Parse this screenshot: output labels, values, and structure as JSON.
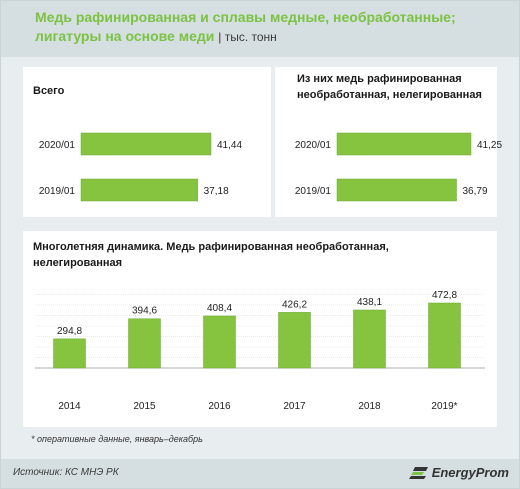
{
  "header": {
    "title": "Медь рафинированная и сплавы медные, необработанные; лигатуры на основе меди",
    "unit": "тыс. тонн"
  },
  "colors": {
    "accent": "#7cc242",
    "bar": "#86c440",
    "bar_edge": "#6aa832"
  },
  "chart_data": [
    {
      "type": "bar",
      "orientation": "horizontal",
      "title": "Всего",
      "categories": [
        "2020/01",
        "2019/01"
      ],
      "values": [
        41.44,
        37.18
      ],
      "value_labels": [
        "41,44",
        "37,18"
      ]
    },
    {
      "type": "bar",
      "orientation": "horizontal",
      "title": "Из них медь рафинированная необработанная,  нелегированная",
      "categories": [
        "2020/01",
        "2019/01"
      ],
      "values": [
        41.25,
        36.79
      ],
      "value_labels": [
        "41,25",
        "36,79"
      ]
    },
    {
      "type": "bar",
      "orientation": "vertical",
      "title": "Многолетняя динамика.   Медь рафинированная   необработанная, нелегированная",
      "categories": [
        "2014",
        "2015",
        "2016",
        "2017",
        "2018",
        "2019*"
      ],
      "values": [
        294.8,
        394.6,
        408.4,
        426.2,
        438.1,
        472.8
      ],
      "value_labels": [
        "294,8",
        "394,6",
        "408,4",
        "426,2",
        "438,1",
        "472,8"
      ],
      "grid": true
    }
  ],
  "footnote": "* оперативные данные, январь–декабрь",
  "footer": {
    "source": "Источник: КС МНЭ РК",
    "logo_text": "EnergyProm",
    "logo_icon": "energyprom-logo-icon"
  }
}
